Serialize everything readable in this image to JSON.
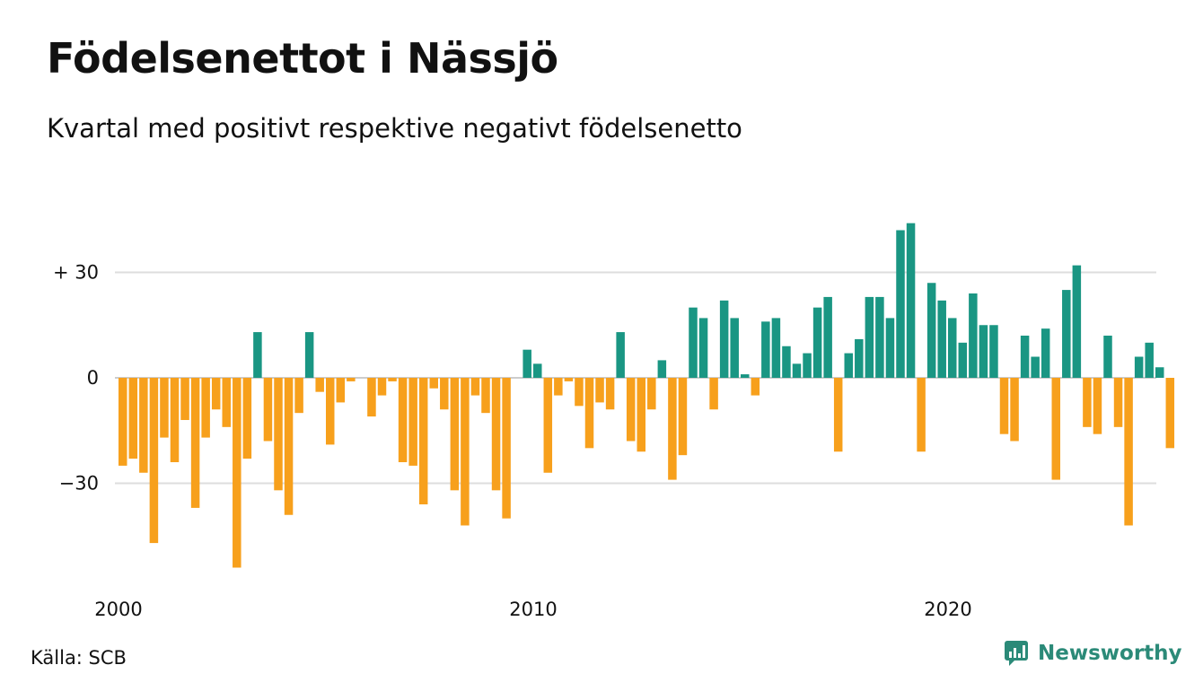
{
  "header": {
    "title": "Födelsenettot i Nässjö",
    "subtitle": "Kvartal med positivt respektive negativt födelsenetto"
  },
  "footer": {
    "source": "Källa: SCB",
    "brand": "Newsworthy"
  },
  "colors": {
    "positive": "#1a9683",
    "negative": "#f7a01c",
    "grid": "#dddddd",
    "brand": "#2b8a78"
  },
  "chart_data": {
    "type": "bar",
    "title": "Födelsenettot i Nässjö",
    "subtitle": "Kvartal med positivt respektive negativt födelsenetto",
    "xlabel": "",
    "ylabel": "",
    "x_start": "2000 Q1",
    "x_ticks": [
      "2000",
      "2010",
      "2020"
    ],
    "y_ticks": [
      {
        "value": 30,
        "label": "+ 30"
      },
      {
        "value": 0,
        "label": "0"
      },
      {
        "value": -30,
        "label": "−30"
      }
    ],
    "ylim": [
      -57,
      45
    ],
    "grid": true,
    "legend": "none",
    "values": [
      -25,
      -23,
      -27,
      -47,
      -17,
      -24,
      -12,
      -37,
      -17,
      -9,
      -14,
      -54,
      -23,
      13,
      -18,
      -32,
      -39,
      -10,
      13,
      -4,
      -19,
      -7,
      -1,
      0,
      -11,
      -5,
      -1,
      -24,
      -25,
      -36,
      -3,
      -9,
      -32,
      -42,
      -5,
      -10,
      -32,
      -40,
      0,
      8,
      4,
      -27,
      -5,
      -1,
      -8,
      -20,
      -7,
      -9,
      13,
      -18,
      -21,
      -9,
      5,
      -29,
      -22,
      20,
      17,
      -9,
      22,
      17,
      1,
      -5,
      16,
      17,
      9,
      4,
      7,
      20,
      23,
      -21,
      7,
      11,
      23,
      23,
      17,
      42,
      44,
      -21,
      27,
      22,
      17,
      10,
      24,
      15,
      15,
      -16,
      -18,
      12,
      6,
      14,
      -29,
      25,
      32,
      -14,
      -16,
      12,
      -14,
      -42,
      6,
      10,
      3,
      -20
    ]
  }
}
